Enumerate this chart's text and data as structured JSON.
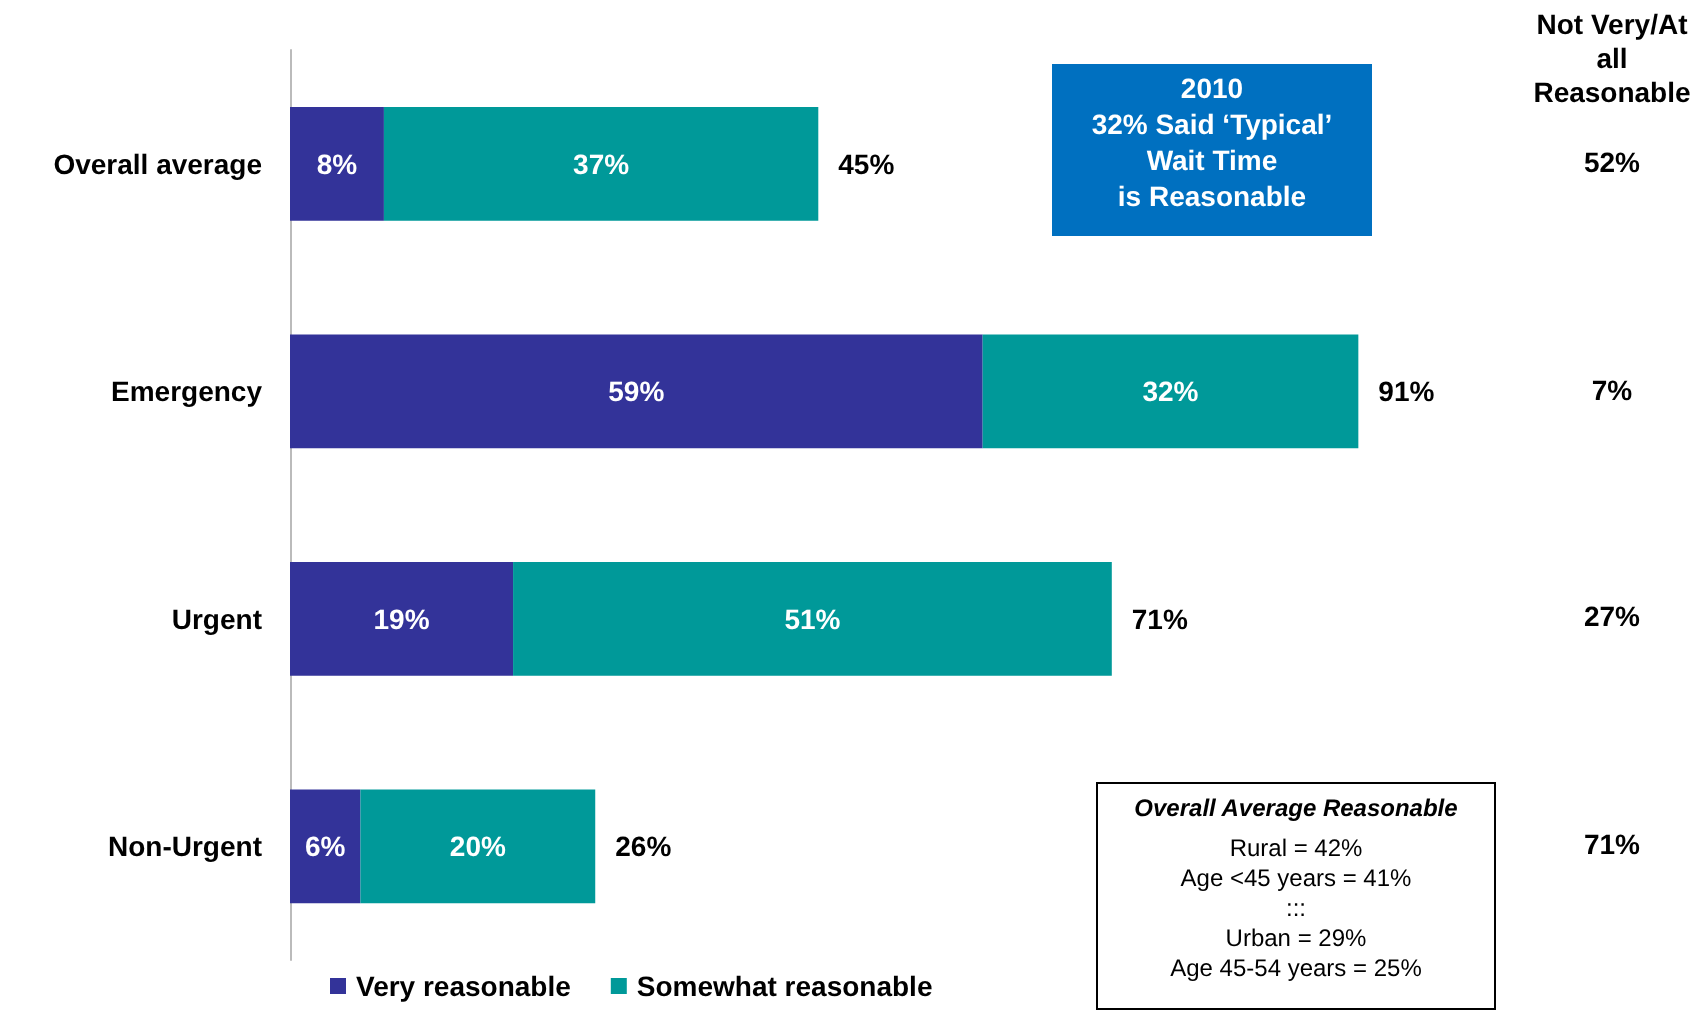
{
  "chart_data": {
    "type": "bar",
    "orientation": "horizontal",
    "stacked": true,
    "categories": [
      "Overall average",
      "Emergency",
      "Urgent",
      "Non-Urgent"
    ],
    "series": [
      {
        "name": "Very reasonable",
        "color": "#333399",
        "values": [
          8,
          59,
          19,
          6
        ],
        "value_labels": [
          "8%",
          "59%",
          "19%",
          "6%"
        ]
      },
      {
        "name": "Somewhat reasonable",
        "color": "#009999",
        "values": [
          37,
          32,
          51,
          20
        ],
        "value_labels": [
          "37%",
          "32%",
          "51%",
          "20%"
        ]
      }
    ],
    "totals": [
      "45%",
      "91%",
      "71%",
      "26%"
    ],
    "legend": "bottom",
    "annotations": [
      "2010\n32% Said ‘Typical’\nWait Time\nis Reasonable",
      "Not Very/At all\nReasonable",
      "52%",
      "7%",
      "27%",
      "71%",
      "Overall Average Reasonable",
      "Rural = 42%",
      "Age <45 years = 41%",
      ":::",
      "Urban = 29%",
      "Age 45-54 years = 25%"
    ]
  }
}
